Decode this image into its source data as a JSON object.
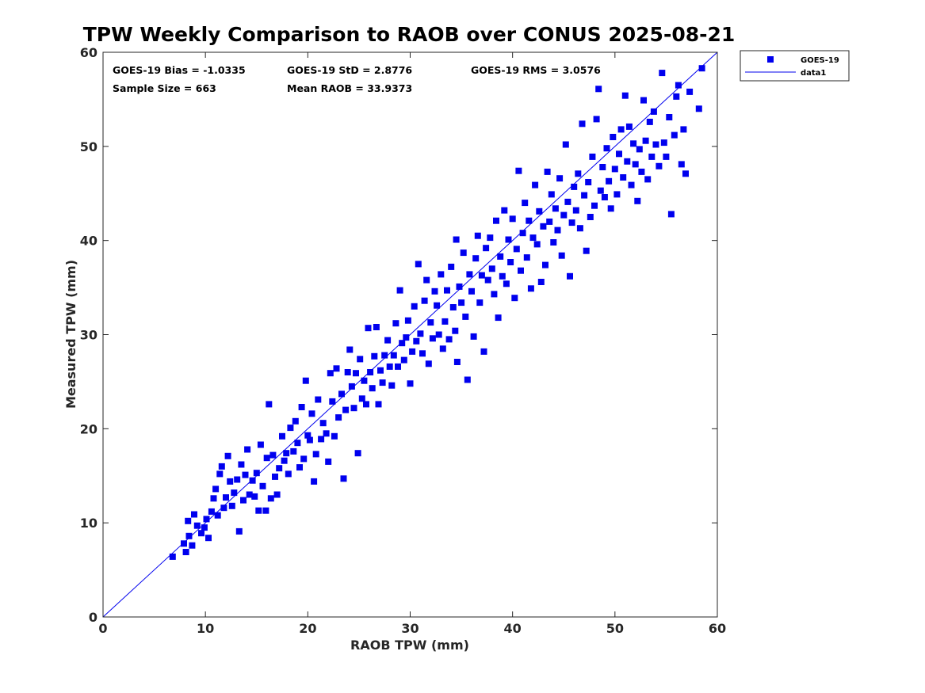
{
  "chart_data": {
    "type": "scatter",
    "title": "TPW Weekly Comparison to RAOB over CONUS 2025-08-21",
    "xlabel": "RAOB TPW (mm)",
    "ylabel": "Measured TPW (mm)",
    "xlim": [
      0,
      60
    ],
    "ylim": [
      0,
      60
    ],
    "xticks": [
      "0",
      "10",
      "20",
      "30",
      "40",
      "50",
      "60"
    ],
    "yticks": [
      "0",
      "10",
      "20",
      "30",
      "40",
      "50",
      "60"
    ],
    "grid": false,
    "legend_position": "outside-top-right",
    "stats": [
      "GOES-19 Bias = -1.0335",
      "GOES-19 StD = 2.8776",
      "GOES-19 RMS = 3.0576",
      "Sample Size = 663",
      "Mean RAOB = 33.9373"
    ],
    "series": [
      {
        "name": "GOES-19",
        "kind": "scatter",
        "marker": "square",
        "color": "#0000ee",
        "sample_size": 663,
        "points": [
          [
            6.8,
            6.4
          ],
          [
            7.9,
            7.8
          ],
          [
            8.1,
            6.9
          ],
          [
            8.3,
            10.2
          ],
          [
            8.4,
            8.6
          ],
          [
            8.7,
            7.6
          ],
          [
            8.9,
            10.9
          ],
          [
            9.2,
            9.7
          ],
          [
            9.6,
            8.9
          ],
          [
            9.9,
            9.5
          ],
          [
            10.1,
            10.4
          ],
          [
            10.3,
            8.4
          ],
          [
            10.6,
            11.2
          ],
          [
            10.8,
            12.6
          ],
          [
            11.0,
            13.6
          ],
          [
            11.2,
            10.8
          ],
          [
            11.4,
            15.2
          ],
          [
            11.6,
            16.0
          ],
          [
            11.8,
            11.6
          ],
          [
            12.0,
            12.7
          ],
          [
            12.2,
            17.1
          ],
          [
            12.4,
            14.4
          ],
          [
            12.6,
            11.8
          ],
          [
            12.8,
            13.2
          ],
          [
            13.1,
            14.6
          ],
          [
            13.3,
            9.1
          ],
          [
            13.5,
            16.2
          ],
          [
            13.7,
            12.4
          ],
          [
            13.9,
            15.1
          ],
          [
            14.1,
            17.8
          ],
          [
            14.3,
            13.0
          ],
          [
            14.6,
            14.5
          ],
          [
            14.8,
            12.8
          ],
          [
            15.0,
            15.3
          ],
          [
            15.2,
            11.3
          ],
          [
            15.4,
            18.3
          ],
          [
            15.6,
            13.9
          ],
          [
            15.9,
            11.3
          ],
          [
            16.0,
            16.9
          ],
          [
            16.2,
            22.6
          ],
          [
            16.4,
            12.6
          ],
          [
            16.6,
            17.2
          ],
          [
            16.8,
            14.9
          ],
          [
            17.0,
            13.0
          ],
          [
            17.2,
            15.8
          ],
          [
            17.5,
            19.2
          ],
          [
            17.7,
            16.6
          ],
          [
            17.9,
            17.4
          ],
          [
            18.1,
            15.2
          ],
          [
            18.3,
            20.1
          ],
          [
            18.6,
            17.6
          ],
          [
            18.8,
            20.8
          ],
          [
            19.0,
            18.5
          ],
          [
            19.2,
            15.9
          ],
          [
            19.4,
            22.3
          ],
          [
            19.6,
            16.8
          ],
          [
            19.8,
            25.1
          ],
          [
            20.0,
            19.3
          ],
          [
            20.2,
            18.8
          ],
          [
            20.4,
            21.6
          ],
          [
            20.6,
            14.4
          ],
          [
            20.8,
            17.3
          ],
          [
            21.0,
            23.1
          ],
          [
            21.3,
            18.9
          ],
          [
            21.5,
            20.6
          ],
          [
            21.8,
            19.5
          ],
          [
            22.0,
            16.5
          ],
          [
            22.2,
            25.9
          ],
          [
            22.4,
            22.9
          ],
          [
            22.6,
            19.2
          ],
          [
            22.8,
            26.4
          ],
          [
            23.0,
            21.2
          ],
          [
            23.3,
            23.7
          ],
          [
            23.5,
            14.7
          ],
          [
            23.7,
            22.0
          ],
          [
            23.9,
            26.0
          ],
          [
            24.1,
            28.4
          ],
          [
            24.3,
            24.5
          ],
          [
            24.5,
            22.2
          ],
          [
            24.7,
            25.9
          ],
          [
            24.9,
            17.4
          ],
          [
            25.1,
            27.4
          ],
          [
            25.3,
            23.2
          ],
          [
            25.5,
            25.1
          ],
          [
            25.7,
            22.6
          ],
          [
            25.9,
            30.7
          ],
          [
            26.1,
            26.0
          ],
          [
            26.3,
            24.3
          ],
          [
            26.5,
            27.7
          ],
          [
            26.7,
            30.8
          ],
          [
            26.9,
            22.6
          ],
          [
            27.1,
            26.2
          ],
          [
            27.3,
            24.9
          ],
          [
            27.5,
            27.8
          ],
          [
            27.8,
            29.4
          ],
          [
            28.0,
            26.6
          ],
          [
            28.2,
            24.6
          ],
          [
            28.4,
            27.8
          ],
          [
            28.6,
            31.2
          ],
          [
            28.8,
            26.6
          ],
          [
            29.0,
            34.7
          ],
          [
            29.2,
            29.1
          ],
          [
            29.4,
            27.3
          ],
          [
            29.6,
            29.7
          ],
          [
            29.8,
            31.5
          ],
          [
            30.0,
            24.8
          ],
          [
            30.2,
            28.2
          ],
          [
            30.4,
            33.0
          ],
          [
            30.6,
            29.3
          ],
          [
            30.8,
            37.5
          ],
          [
            31.0,
            30.1
          ],
          [
            31.2,
            28.0
          ],
          [
            31.4,
            33.6
          ],
          [
            31.6,
            35.8
          ],
          [
            31.8,
            26.9
          ],
          [
            32.0,
            31.3
          ],
          [
            32.2,
            29.6
          ],
          [
            32.4,
            34.6
          ],
          [
            32.6,
            33.1
          ],
          [
            32.8,
            30.0
          ],
          [
            33.0,
            36.4
          ],
          [
            33.2,
            28.5
          ],
          [
            33.4,
            31.4
          ],
          [
            33.6,
            34.7
          ],
          [
            33.8,
            29.5
          ],
          [
            34.0,
            37.2
          ],
          [
            34.2,
            32.9
          ],
          [
            34.4,
            30.4
          ],
          [
            34.5,
            40.1
          ],
          [
            34.6,
            27.1
          ],
          [
            34.8,
            35.1
          ],
          [
            35.0,
            33.4
          ],
          [
            35.2,
            38.7
          ],
          [
            35.4,
            31.9
          ],
          [
            35.6,
            25.2
          ],
          [
            35.8,
            36.4
          ],
          [
            36.0,
            34.6
          ],
          [
            36.2,
            29.8
          ],
          [
            36.4,
            38.1
          ],
          [
            36.6,
            40.5
          ],
          [
            36.8,
            33.4
          ],
          [
            37.0,
            36.3
          ],
          [
            37.2,
            28.2
          ],
          [
            37.4,
            39.2
          ],
          [
            37.6,
            35.8
          ],
          [
            37.8,
            40.3
          ],
          [
            38.0,
            37.0
          ],
          [
            38.2,
            34.3
          ],
          [
            38.4,
            42.1
          ],
          [
            38.6,
            31.8
          ],
          [
            38.8,
            38.3
          ],
          [
            39.0,
            36.2
          ],
          [
            39.2,
            43.2
          ],
          [
            39.4,
            35.4
          ],
          [
            39.6,
            40.1
          ],
          [
            39.8,
            37.7
          ],
          [
            40.0,
            42.3
          ],
          [
            40.2,
            33.9
          ],
          [
            40.4,
            39.1
          ],
          [
            40.6,
            47.4
          ],
          [
            40.8,
            36.8
          ],
          [
            41.0,
            40.8
          ],
          [
            41.2,
            44.0
          ],
          [
            41.4,
            38.2
          ],
          [
            41.6,
            42.1
          ],
          [
            41.8,
            34.9
          ],
          [
            42.0,
            40.3
          ],
          [
            42.2,
            45.9
          ],
          [
            42.4,
            39.6
          ],
          [
            42.6,
            43.1
          ],
          [
            42.8,
            35.6
          ],
          [
            43.0,
            41.5
          ],
          [
            43.2,
            37.4
          ],
          [
            43.4,
            47.3
          ],
          [
            43.6,
            42.0
          ],
          [
            43.8,
            44.9
          ],
          [
            44.0,
            39.8
          ],
          [
            44.2,
            43.4
          ],
          [
            44.4,
            41.1
          ],
          [
            44.6,
            46.6
          ],
          [
            44.8,
            38.4
          ],
          [
            45.0,
            42.7
          ],
          [
            45.2,
            50.2
          ],
          [
            45.4,
            44.1
          ],
          [
            45.6,
            36.2
          ],
          [
            45.8,
            41.9
          ],
          [
            46.0,
            45.7
          ],
          [
            46.2,
            43.2
          ],
          [
            46.4,
            47.1
          ],
          [
            46.6,
            41.3
          ],
          [
            46.8,
            52.4
          ],
          [
            47.0,
            44.8
          ],
          [
            47.2,
            38.9
          ],
          [
            47.4,
            46.2
          ],
          [
            47.6,
            42.5
          ],
          [
            47.8,
            48.9
          ],
          [
            48.0,
            43.7
          ],
          [
            48.2,
            52.9
          ],
          [
            48.4,
            56.1
          ],
          [
            48.6,
            45.3
          ],
          [
            48.8,
            47.8
          ],
          [
            49.0,
            44.6
          ],
          [
            49.2,
            49.8
          ],
          [
            49.4,
            46.3
          ],
          [
            49.6,
            43.4
          ],
          [
            49.8,
            51.0
          ],
          [
            50.0,
            47.6
          ],
          [
            50.2,
            44.9
          ],
          [
            50.4,
            49.2
          ],
          [
            50.6,
            51.8
          ],
          [
            50.8,
            46.7
          ],
          [
            51.0,
            55.4
          ],
          [
            51.2,
            48.4
          ],
          [
            51.4,
            52.1
          ],
          [
            51.6,
            45.9
          ],
          [
            51.8,
            50.3
          ],
          [
            52.0,
            48.1
          ],
          [
            52.2,
            44.2
          ],
          [
            52.4,
            49.7
          ],
          [
            52.6,
            47.3
          ],
          [
            52.8,
            54.9
          ],
          [
            53.0,
            50.6
          ],
          [
            53.2,
            46.5
          ],
          [
            53.4,
            52.6
          ],
          [
            53.6,
            48.9
          ],
          [
            53.8,
            53.7
          ],
          [
            54.0,
            50.2
          ],
          [
            54.3,
            47.9
          ],
          [
            54.6,
            57.8
          ],
          [
            54.8,
            50.4
          ],
          [
            55.0,
            48.9
          ],
          [
            55.3,
            53.1
          ],
          [
            55.5,
            42.8
          ],
          [
            55.8,
            51.2
          ],
          [
            56.0,
            55.3
          ],
          [
            56.2,
            56.5
          ],
          [
            56.5,
            48.1
          ],
          [
            56.7,
            51.8
          ],
          [
            56.9,
            47.1
          ],
          [
            57.3,
            55.8
          ],
          [
            58.2,
            54.0
          ],
          [
            58.5,
            58.3
          ]
        ]
      },
      {
        "name": "data1",
        "kind": "line",
        "color": "#0000ee",
        "points": [
          [
            0,
            0
          ],
          [
            60,
            60
          ]
        ]
      }
    ]
  }
}
